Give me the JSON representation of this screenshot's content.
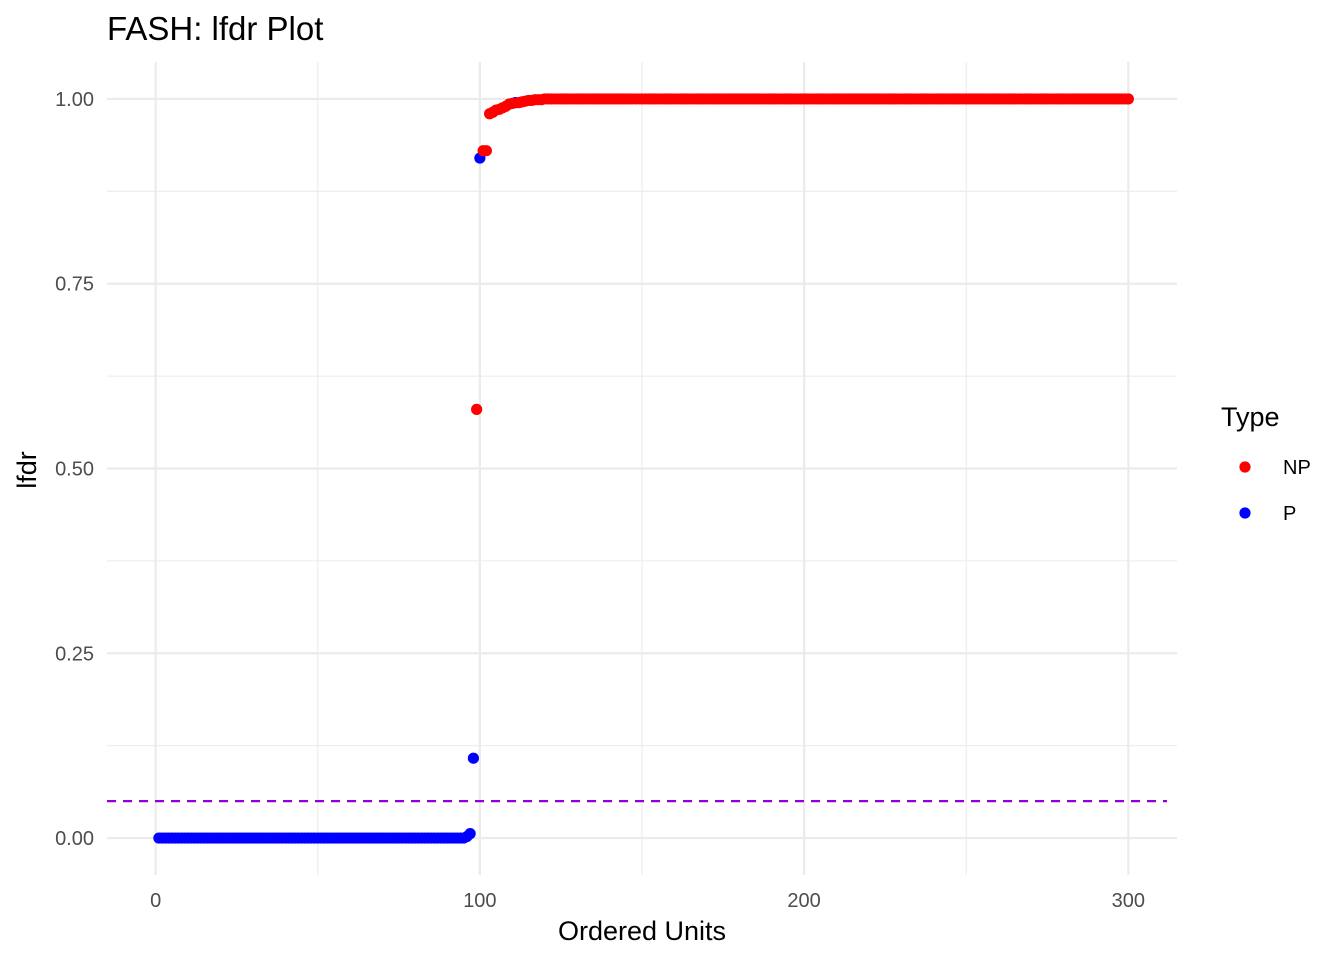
{
  "chart_data": {
    "type": "scatter",
    "title": "FASH: lfdr Plot",
    "xlabel": "Ordered Units",
    "ylabel": "lfdr",
    "xlim": [
      -15,
      315
    ],
    "ylim": [
      -0.05,
      1.05
    ],
    "x_ticks": [
      0,
      100,
      200,
      300
    ],
    "x_tick_labels": [
      "0",
      "100",
      "200",
      "300"
    ],
    "y_ticks": [
      0.0,
      0.25,
      0.5,
      0.75,
      1.0
    ],
    "y_tick_labels": [
      "0.00",
      "0.25",
      "0.50",
      "0.75",
      "1.00"
    ],
    "grid": true,
    "threshold_line": {
      "y": 0.05,
      "style": "dashed",
      "color": "#9400D3"
    },
    "legend": {
      "title": "Type",
      "position": "right",
      "entries": [
        {
          "name": "NP",
          "color": "#FF0000"
        },
        {
          "name": "P",
          "color": "#0000FF"
        }
      ]
    },
    "series": [
      {
        "name": "P",
        "color": "#0000FF",
        "points": [
          {
            "x_from": 1,
            "x_to": 95,
            "y": 0.0
          },
          {
            "x": 96,
            "y": 0.002
          },
          {
            "x": 97,
            "y": 0.006
          },
          {
            "x": 98,
            "y": 0.108
          },
          {
            "x": 100,
            "y": 0.92
          },
          {
            "x": 111,
            "y": 0.995
          }
        ]
      },
      {
        "name": "NP",
        "color": "#FF0000",
        "points": [
          {
            "x": 99,
            "y": 0.58
          },
          {
            "x": 101,
            "y": 0.93
          },
          {
            "x": 102,
            "y": 0.93
          },
          {
            "x": 103,
            "y": 0.98
          },
          {
            "x": 104,
            "y": 0.982
          },
          {
            "x": 105,
            "y": 0.985
          },
          {
            "x": 106,
            "y": 0.986
          },
          {
            "x": 107,
            "y": 0.988
          },
          {
            "x": 108,
            "y": 0.99
          },
          {
            "x": 109,
            "y": 0.993
          },
          {
            "x": 110,
            "y": 0.994
          },
          {
            "x": 112,
            "y": 0.995
          },
          {
            "x": 113,
            "y": 0.996
          },
          {
            "x": 114,
            "y": 0.997
          },
          {
            "x": 115,
            "y": 0.998
          },
          {
            "x": 116,
            "y": 0.998
          },
          {
            "x": 117,
            "y": 0.999
          },
          {
            "x": 118,
            "y": 0.999
          },
          {
            "x": 119,
            "y": 0.999
          },
          {
            "x_from": 120,
            "x_to": 300,
            "y": 1.0
          }
        ]
      }
    ]
  }
}
